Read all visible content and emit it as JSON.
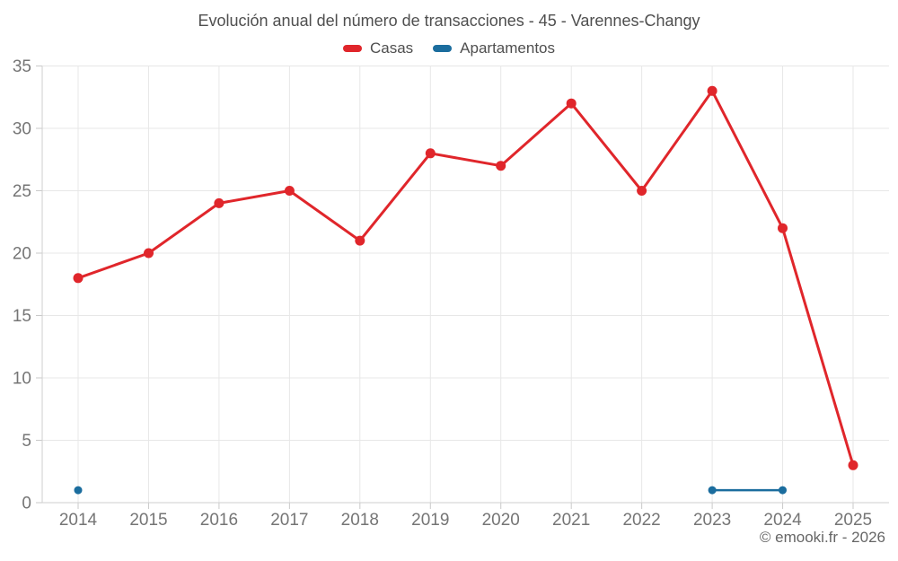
{
  "header": {
    "title": "Evolución anual del número de transacciones - 45 - Varennes-Changy"
  },
  "footer": {
    "copyright": "© emooki.fr - 2026"
  },
  "colors": {
    "casas": "#e0262b",
    "apartamentos": "#1b6d9e",
    "grid": "#e7e7e7",
    "axis": "#cfcfcf",
    "tick": "#c9c9c9",
    "axis_text": "#757575"
  },
  "chart_data": {
    "type": "line",
    "title": "Evolución anual del número de transacciones - 45 - Varennes-Changy",
    "categories": [
      "2014",
      "2015",
      "2016",
      "2017",
      "2018",
      "2019",
      "2020",
      "2021",
      "2022",
      "2023",
      "2024",
      "2025"
    ],
    "series": [
      {
        "name": "Casas",
        "color": "#e0262b",
        "values": [
          18,
          20,
          24,
          25,
          21,
          28,
          27,
          32,
          25,
          33,
          22,
          3
        ]
      },
      {
        "name": "Apartamentos",
        "color": "#1b6d9e",
        "values": [
          1,
          null,
          null,
          null,
          null,
          null,
          null,
          null,
          null,
          1,
          1,
          null
        ]
      }
    ],
    "xlabel": "",
    "ylabel": "",
    "ylim": [
      0,
      35
    ],
    "ytick_step": 5,
    "grid": true,
    "legend_position": "top",
    "annotations": [
      "© emooki.fr - 2026"
    ]
  }
}
